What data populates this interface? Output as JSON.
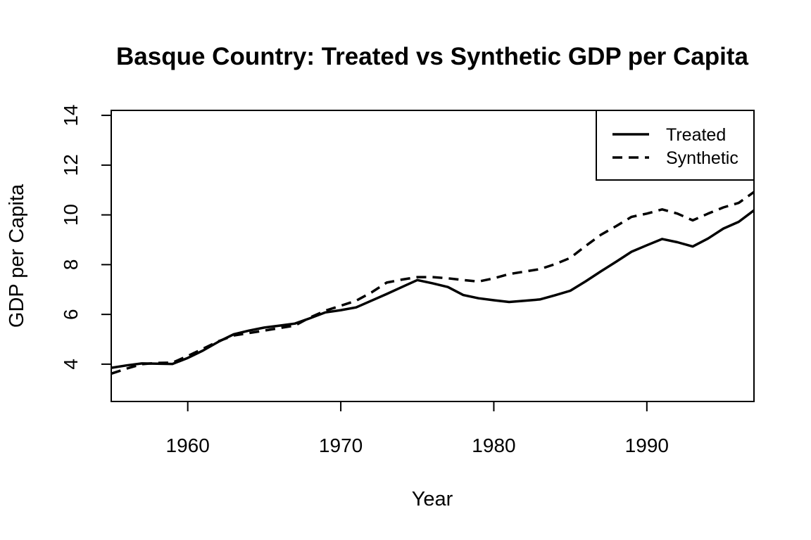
{
  "chart_data": {
    "type": "line",
    "title": "Basque Country: Treated vs Synthetic GDP per Capita",
    "xlabel": "Year",
    "ylabel": "GDP per Capita",
    "xlim": [
      1955,
      1997
    ],
    "ylim": [
      2.5,
      14.2
    ],
    "xticks": [
      1960,
      1970,
      1980,
      1990
    ],
    "yticks": [
      4,
      6,
      8,
      10,
      12,
      14
    ],
    "grid": false,
    "legend_position": "top-right",
    "x": [
      1955,
      1956,
      1957,
      1958,
      1959,
      1960,
      1961,
      1962,
      1963,
      1964,
      1965,
      1966,
      1967,
      1968,
      1969,
      1970,
      1971,
      1972,
      1973,
      1974,
      1975,
      1976,
      1977,
      1978,
      1979,
      1980,
      1981,
      1982,
      1983,
      1984,
      1985,
      1986,
      1987,
      1988,
      1989,
      1990,
      1991,
      1992,
      1993,
      1994,
      1995,
      1996,
      1997
    ],
    "series": [
      {
        "name": "Treated",
        "style": "solid",
        "values": [
          3.85,
          3.95,
          4.03,
          4.02,
          4.01,
          4.25,
          4.55,
          4.9,
          5.2,
          5.35,
          5.47,
          5.55,
          5.63,
          5.85,
          6.08,
          6.17,
          6.28,
          6.55,
          6.82,
          7.1,
          7.38,
          7.25,
          7.1,
          6.78,
          6.65,
          6.57,
          6.5,
          6.55,
          6.6,
          6.77,
          6.95,
          7.33,
          7.73,
          8.12,
          8.52,
          8.78,
          9.03,
          8.9,
          8.73,
          9.05,
          9.45,
          9.72,
          10.18
        ]
      },
      {
        "name": "Synthetic",
        "style": "dashed",
        "values": [
          3.62,
          3.82,
          4.0,
          4.05,
          4.06,
          4.33,
          4.62,
          4.92,
          5.15,
          5.25,
          5.35,
          5.45,
          5.55,
          5.88,
          6.15,
          6.35,
          6.55,
          6.88,
          7.28,
          7.4,
          7.5,
          7.5,
          7.45,
          7.38,
          7.32,
          7.45,
          7.62,
          7.72,
          7.82,
          8.02,
          8.27,
          8.75,
          9.2,
          9.55,
          9.92,
          10.05,
          10.22,
          10.05,
          9.78,
          10.05,
          10.3,
          10.48,
          10.92
        ]
      }
    ]
  }
}
